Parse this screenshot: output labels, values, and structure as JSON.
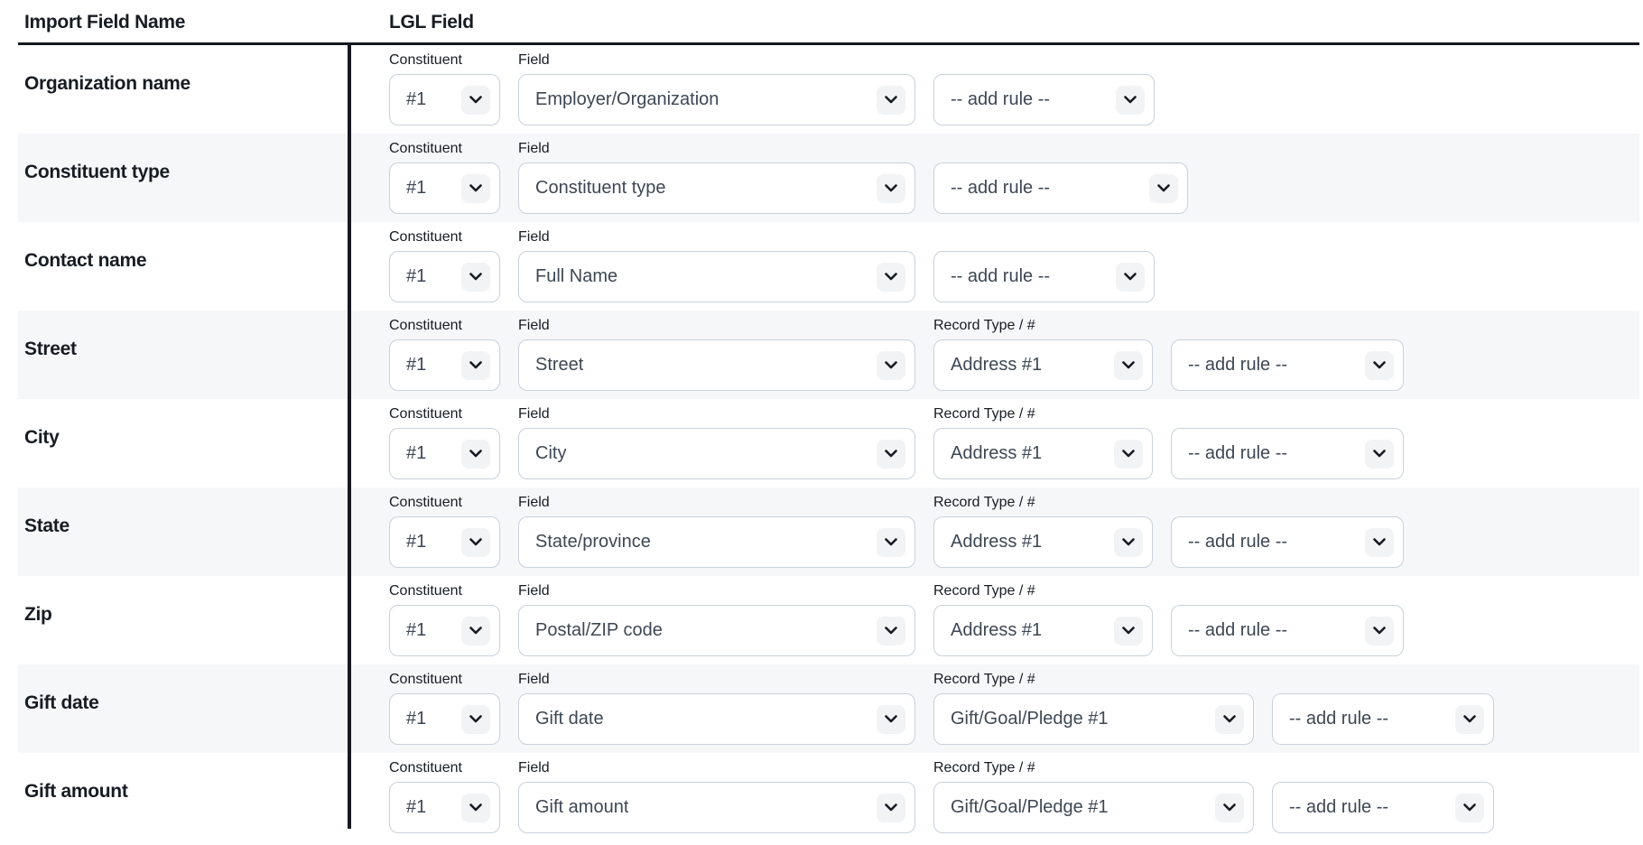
{
  "table": {
    "headers": [
      {
        "label": "Import Field Name"
      },
      {
        "label": "LGL Field"
      }
    ],
    "field_labels": {
      "constituent": "Constituent",
      "field": "Field",
      "record_type": "Record Type / #"
    },
    "rows": [
      {
        "import_field": "Organization name",
        "constituent": "#1",
        "field": "Employer/Organization",
        "record_type": null,
        "add_rule": "-- add rule --"
      },
      {
        "import_field": "Constituent type",
        "constituent": "#1",
        "field": "Constituent type",
        "record_type": null,
        "add_rule": "-- add rule --"
      },
      {
        "import_field": "Contact name",
        "constituent": "#1",
        "field": "Full Name",
        "record_type": null,
        "add_rule": "-- add rule --"
      },
      {
        "import_field": "Street",
        "constituent": "#1",
        "field": "Street",
        "record_type": "Address #1",
        "add_rule": "-- add rule --"
      },
      {
        "import_field": "City",
        "constituent": "#1",
        "field": "City",
        "record_type": "Address #1",
        "add_rule": "-- add rule --"
      },
      {
        "import_field": "State",
        "constituent": "#1",
        "field": "State/province",
        "record_type": "Address #1",
        "add_rule": "-- add rule --"
      },
      {
        "import_field": "Zip",
        "constituent": "#1",
        "field": "Postal/ZIP code",
        "record_type": "Address #1",
        "add_rule": "-- add rule --"
      },
      {
        "import_field": "Gift date",
        "constituent": "#1",
        "field": "Gift date",
        "record_type": "Gift/Goal/Pledge #1",
        "add_rule": "-- add rule --"
      },
      {
        "import_field": "Gift amount",
        "constituent": "#1",
        "field": "Gift amount",
        "record_type": "Gift/Goal/Pledge #1",
        "add_rule": "-- add rule --"
      }
    ]
  },
  "colors": {
    "divider": "#16191f",
    "stripe": "#f6f7f9",
    "select_border": "#c9d1db",
    "select_text": "#3e4754",
    "label_text": "#171c23",
    "chevron_bg": "#f1f3f5"
  }
}
